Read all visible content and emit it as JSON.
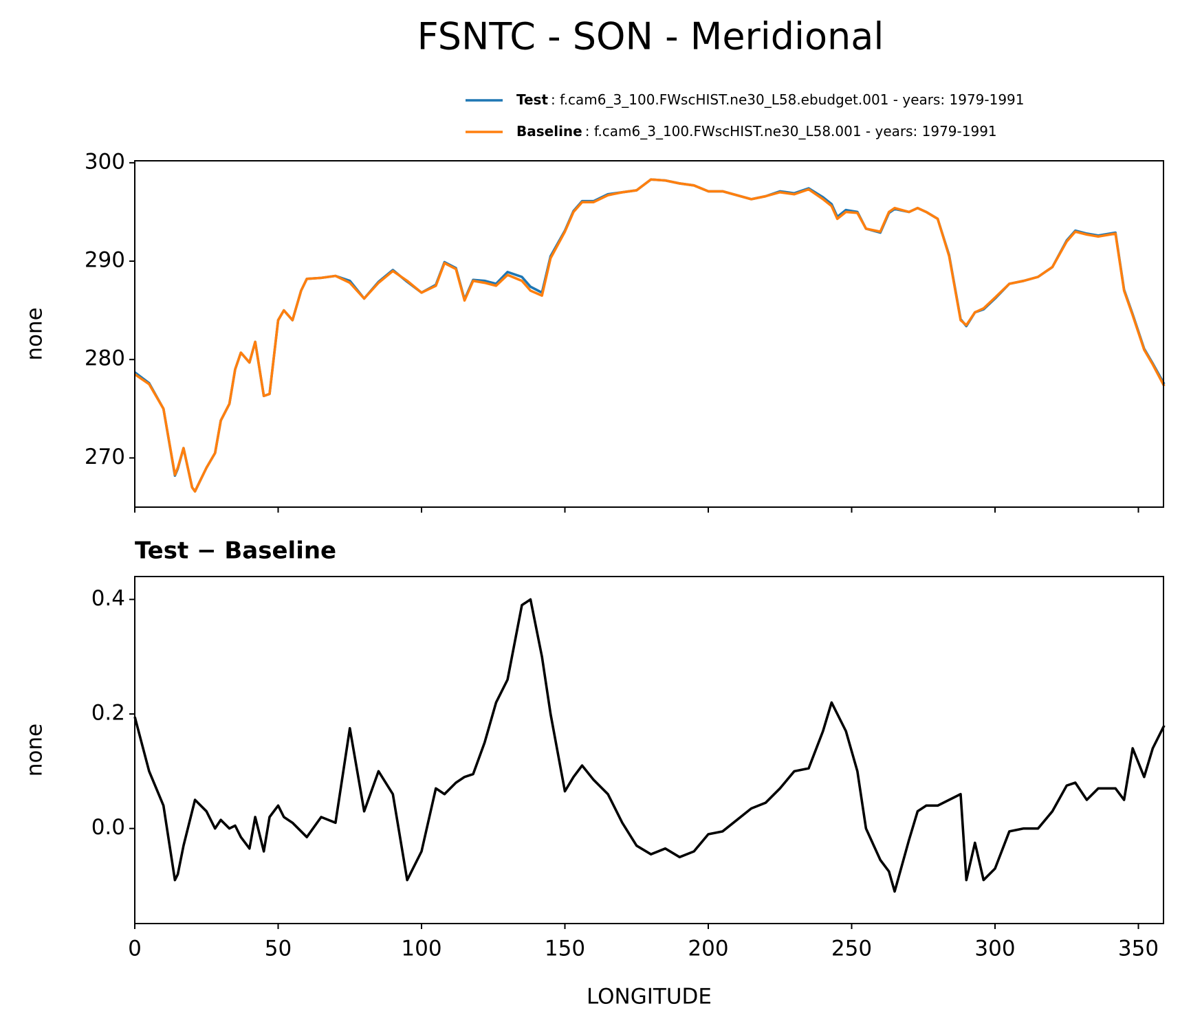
{
  "chart_data": [
    {
      "type": "line",
      "title": "FSNTC - SON - Meridional",
      "ylabel": "none",
      "x": [
        0,
        5,
        10,
        14,
        15,
        17,
        20,
        21,
        25,
        28,
        30,
        33,
        35,
        37,
        40,
        42,
        45,
        47,
        50,
        52,
        55,
        58,
        60,
        65,
        70,
        75,
        80,
        85,
        90,
        95,
        100,
        105,
        108,
        112,
        115,
        118,
        122,
        126,
        130,
        135,
        138,
        142,
        145,
        150,
        153,
        156,
        160,
        165,
        170,
        175,
        180,
        185,
        190,
        195,
        200,
        205,
        210,
        215,
        220,
        225,
        230,
        235,
        240,
        243,
        245,
        248,
        252,
        255,
        260,
        263,
        265,
        270,
        273,
        276,
        280,
        284,
        288,
        290,
        293,
        296,
        300,
        305,
        310,
        315,
        320,
        325,
        328,
        332,
        336,
        342,
        345,
        348,
        352,
        355,
        359
      ],
      "series": [
        {
          "name": "Test",
          "description": ": f.cam6_3_100.FWscHIST.ne30_L58.ebudget.001 - years: 1979-1991",
          "color": "#1f77b4",
          "values": [
            278.7,
            277.6,
            275.0,
            268.2,
            268.9,
            271.0,
            267.0,
            266.6,
            269.0,
            270.5,
            273.8,
            275.5,
            279.0,
            280.7,
            279.7,
            281.8,
            276.3,
            276.5,
            284.0,
            285.0,
            284.0,
            287.0,
            288.2,
            288.3,
            288.5,
            288.0,
            286.2,
            287.9,
            289.1,
            287.9,
            286.8,
            287.6,
            289.9,
            289.3,
            286.1,
            288.1,
            288.0,
            287.7,
            288.9,
            288.4,
            287.4,
            286.8,
            290.5,
            293.1,
            295.1,
            296.1,
            296.1,
            296.8,
            297.0,
            297.2,
            298.3,
            298.2,
            297.9,
            297.7,
            297.1,
            297.1,
            296.7,
            296.3,
            296.6,
            297.1,
            296.9,
            297.4,
            296.5,
            295.8,
            294.5,
            295.2,
            295.0,
            293.3,
            292.9,
            294.9,
            295.3,
            295.0,
            295.4,
            295.0,
            294.3,
            290.6,
            284.1,
            283.4,
            284.8,
            285.1,
            286.2,
            287.7,
            288.0,
            288.4,
            289.4,
            292.1,
            293.1,
            292.8,
            292.6,
            292.9,
            287.1,
            284.6,
            281.1,
            279.6,
            277.5
          ]
        },
        {
          "name": "Baseline",
          "description": ": f.cam6_3_100.FWscHIST.ne30_L58.001 - years: 1979-1991",
          "color": "#ff7f0e",
          "values": [
            278.5,
            277.5,
            275,
            268.3,
            269,
            271,
            267,
            266.6,
            269,
            270.5,
            273.8,
            275.5,
            279,
            280.7,
            279.7,
            281.8,
            276.3,
            276.5,
            284,
            285,
            284,
            287,
            288.2,
            288.3,
            288.5,
            287.8,
            286.2,
            287.8,
            289,
            288,
            286.8,
            287.5,
            289.8,
            289.2,
            286,
            288,
            287.8,
            287.5,
            288.6,
            288,
            287,
            286.5,
            290.3,
            293,
            295,
            296,
            296,
            296.7,
            297,
            297.2,
            298.3,
            298.2,
            297.9,
            297.7,
            297.1,
            297.1,
            296.7,
            296.3,
            296.6,
            297,
            296.8,
            297.3,
            296.3,
            295.6,
            294.3,
            295,
            294.9,
            293.3,
            293,
            295,
            295.4,
            295,
            295.4,
            295,
            294.3,
            290.5,
            284,
            283.5,
            284.8,
            285.2,
            286.3,
            287.7,
            288,
            288.4,
            289.4,
            292,
            293,
            292.7,
            292.5,
            292.8,
            287,
            284.5,
            281,
            279.5,
            277.3
          ]
        }
      ],
      "xlim": [
        0,
        358.75
      ],
      "xticks": [
        0,
        50,
        100,
        150,
        200,
        250,
        300,
        350
      ],
      "ylim": [
        265,
        300.2
      ],
      "yticks": [
        270,
        280,
        290,
        300
      ]
    },
    {
      "type": "line",
      "subtitle": "Test − Baseline",
      "xlabel": "LONGITUDE",
      "ylabel": "none",
      "x": [
        0,
        5,
        10,
        14,
        15,
        17,
        20,
        21,
        25,
        28,
        30,
        33,
        35,
        37,
        40,
        42,
        45,
        47,
        50,
        52,
        55,
        58,
        60,
        65,
        70,
        75,
        80,
        85,
        90,
        95,
        100,
        105,
        108,
        112,
        115,
        118,
        122,
        126,
        130,
        135,
        138,
        142,
        145,
        150,
        153,
        156,
        160,
        165,
        170,
        175,
        180,
        185,
        190,
        195,
        200,
        205,
        210,
        215,
        220,
        225,
        230,
        235,
        240,
        243,
        245,
        248,
        252,
        255,
        260,
        263,
        265,
        270,
        273,
        276,
        280,
        284,
        288,
        290,
        293,
        296,
        300,
        305,
        310,
        315,
        320,
        325,
        328,
        332,
        336,
        342,
        345,
        348,
        352,
        355,
        359
      ],
      "series": [
        {
          "color": "#000000",
          "values": [
            0.195,
            0.1,
            0.04,
            -0.09,
            -0.08,
            -0.03,
            0.03,
            0.05,
            0.03,
            0.0,
            0.015,
            0.0,
            0.005,
            -0.015,
            -0.035,
            0.02,
            -0.04,
            0.02,
            0.04,
            0.02,
            0.01,
            -0.005,
            -0.015,
            0.02,
            0.01,
            0.175,
            0.03,
            0.1,
            0.06,
            -0.09,
            -0.04,
            0.07,
            0.06,
            0.08,
            0.09,
            0.095,
            0.15,
            0.22,
            0.26,
            0.39,
            0.4,
            0.3,
            0.2,
            0.065,
            0.09,
            0.11,
            0.085,
            0.06,
            0.01,
            -0.03,
            -0.045,
            -0.035,
            -0.05,
            -0.04,
            -0.01,
            -0.005,
            0.015,
            0.035,
            0.045,
            0.07,
            0.1,
            0.105,
            0.17,
            0.22,
            0.2,
            0.17,
            0.1,
            0.0,
            -0.055,
            -0.075,
            -0.11,
            -0.02,
            0.03,
            0.04,
            0.04,
            0.05,
            0.06,
            -0.09,
            -0.025,
            -0.09,
            -0.07,
            -0.005,
            0.0,
            0.0,
            0.03,
            0.075,
            0.08,
            0.05,
            0.07,
            0.07,
            0.05,
            0.14,
            0.09,
            0.14,
            0.18
          ]
        }
      ],
      "xlim": [
        0,
        358.75
      ],
      "xticks": [
        0,
        50,
        100,
        150,
        200,
        250,
        300,
        350
      ],
      "ylim": [
        -0.166,
        0.44
      ],
      "yticks": [
        {
          "value": 0,
          "label": "0.0"
        },
        0.2,
        0.4
      ]
    }
  ]
}
